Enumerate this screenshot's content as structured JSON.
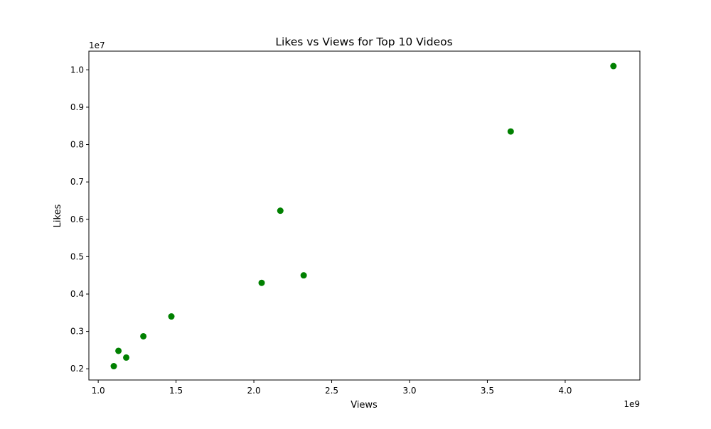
{
  "chart_data": {
    "type": "scatter",
    "title": "Likes vs Views for Top 10 Videos",
    "xlabel": "Views",
    "ylabel": "Likes",
    "x_offset_label": "1e9",
    "y_offset_label": "1e7",
    "x_scale": 1000000000,
    "y_scale": 10000000,
    "xlim": [
      0.94,
      4.48
    ],
    "ylim": [
      0.17,
      1.05
    ],
    "x_ticks": [
      1.0,
      1.5,
      2.0,
      2.5,
      3.0,
      3.5,
      4.0
    ],
    "x_tick_labels": [
      "1.0",
      "1.5",
      "2.0",
      "2.5",
      "3.0",
      "3.5",
      "4.0"
    ],
    "y_ticks": [
      0.2,
      0.3,
      0.4,
      0.5,
      0.6,
      0.7,
      0.8,
      0.9,
      1.0
    ],
    "y_tick_labels": [
      "0.2",
      "0.3",
      "0.4",
      "0.5",
      "0.6",
      "0.7",
      "0.8",
      "0.9",
      "1.0"
    ],
    "grid": false,
    "marker_color": "#008000",
    "points": [
      {
        "x": 4310000000,
        "y": 10100000
      },
      {
        "x": 3650000000,
        "y": 8350000
      },
      {
        "x": 2170000000,
        "y": 6230000
      },
      {
        "x": 2320000000,
        "y": 4500000
      },
      {
        "x": 2050000000,
        "y": 4300000
      },
      {
        "x": 1470000000,
        "y": 3400000
      },
      {
        "x": 1290000000,
        "y": 2870000
      },
      {
        "x": 1130000000,
        "y": 2480000
      },
      {
        "x": 1180000000,
        "y": 2300000
      },
      {
        "x": 1100000000,
        "y": 2070000
      }
    ]
  }
}
